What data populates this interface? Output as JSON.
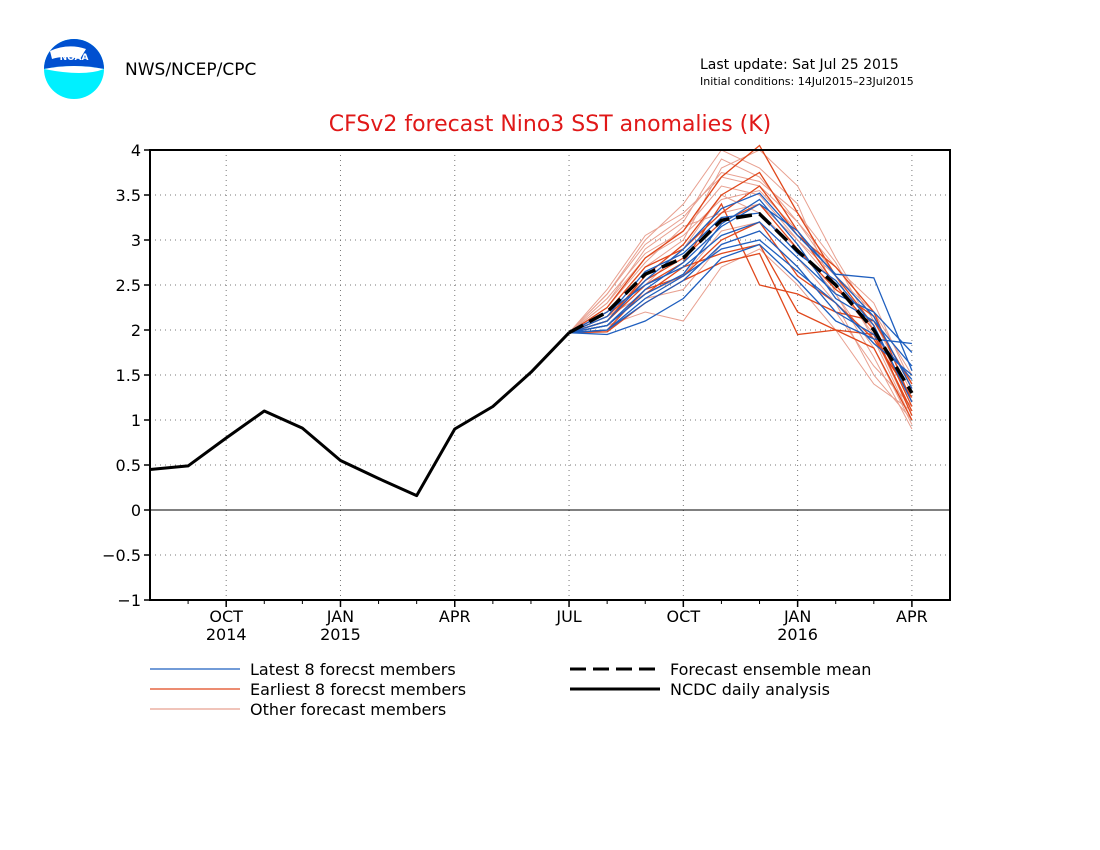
{
  "header": {
    "org": "NWS/NCEP/CPC",
    "last_update": "Last update: Sat Jul 25 2015",
    "initial_conditions": "Initial conditions: 14Jul2015–23Jul2015",
    "logo_text": "NOAA"
  },
  "colors": {
    "title": "#e01818",
    "latest": "#1f5fbf",
    "earliest": "#e0481c",
    "other": "#e8a090",
    "mean": "#000000",
    "analysis": "#000000"
  },
  "chart_data": {
    "type": "line",
    "title": "CFSv2 forecast Nino3 SST anomalies (K)",
    "ylim": [
      -1,
      4
    ],
    "yticks": [
      -1,
      -0.5,
      0,
      0.5,
      1,
      1.5,
      2,
      2.5,
      3,
      3.5,
      4
    ],
    "ytick_labels": [
      "−1",
      "−0.5",
      "0",
      "0.5",
      "1",
      "1.5",
      "2",
      "2.5",
      "3",
      "3.5",
      "4"
    ],
    "xlim": [
      0,
      21
    ],
    "xticks": [
      {
        "x": 2,
        "label": "OCT",
        "year": "2014"
      },
      {
        "x": 5,
        "label": "JAN",
        "year": "2015"
      },
      {
        "x": 8,
        "label": "APR",
        "year": ""
      },
      {
        "x": 11,
        "label": "JUL",
        "year": ""
      },
      {
        "x": 14,
        "label": "OCT",
        "year": ""
      },
      {
        "x": 17,
        "label": "JAN",
        "year": "2016"
      },
      {
        "x": 20,
        "label": "APR",
        "year": ""
      }
    ],
    "analysis": {
      "name": "NCDC daily analysis",
      "x": [
        0,
        1,
        2,
        3,
        4,
        5,
        6,
        7,
        8,
        9,
        10,
        11
      ],
      "values": [
        0.45,
        0.49,
        0.8,
        1.1,
        0.91,
        0.55,
        0.35,
        0.16,
        0.9,
        1.15,
        1.53,
        1.97
      ]
    },
    "mean": {
      "name": "Forecast ensemble mean",
      "x": [
        11,
        12,
        13,
        14,
        15,
        16,
        17,
        18,
        19,
        20
      ],
      "values": [
        1.97,
        2.2,
        2.62,
        2.8,
        3.22,
        3.29,
        2.88,
        2.5,
        2.0,
        1.3
      ]
    },
    "series": [
      {
        "name": "Latest 8 forecst members",
        "group": "latest",
        "x": [
          11,
          12,
          13,
          14,
          15,
          16,
          17,
          18,
          19,
          20
        ],
        "values": [
          1.97,
          2.05,
          2.4,
          2.62,
          3.18,
          3.45,
          2.95,
          2.35,
          2.1,
          1.6
        ]
      },
      {
        "name": "Latest 8 forecst members",
        "group": "latest",
        "x": [
          11,
          12,
          13,
          14,
          15,
          16,
          17,
          18,
          19,
          20
        ],
        "values": [
          1.97,
          2.1,
          2.55,
          2.9,
          3.35,
          3.52,
          3.05,
          2.62,
          2.58,
          1.55
        ]
      },
      {
        "name": "Latest 8 forecst members",
        "group": "latest",
        "x": [
          11,
          12,
          13,
          14,
          15,
          16,
          17,
          18,
          19,
          20
        ],
        "values": [
          1.97,
          2.0,
          2.3,
          2.55,
          2.95,
          3.1,
          2.7,
          2.2,
          1.95,
          1.45
        ]
      },
      {
        "name": "Latest 8 forecst members",
        "group": "latest",
        "x": [
          11,
          12,
          13,
          14,
          15,
          16,
          17,
          18,
          19,
          20
        ],
        "values": [
          1.97,
          2.15,
          2.65,
          2.85,
          3.25,
          3.3,
          2.85,
          2.55,
          2.05,
          1.2
        ]
      },
      {
        "name": "Latest 8 forecst members",
        "group": "latest",
        "x": [
          11,
          12,
          13,
          14,
          15,
          16,
          17,
          18,
          19,
          20
        ],
        "values": [
          1.97,
          1.95,
          2.1,
          2.35,
          2.8,
          2.95,
          2.55,
          2.1,
          1.9,
          1.85
        ]
      },
      {
        "name": "Latest 8 forecst members",
        "group": "latest",
        "x": [
          11,
          12,
          13,
          14,
          15,
          16,
          17,
          18,
          19,
          20
        ],
        "values": [
          1.97,
          2.2,
          2.5,
          2.7,
          3.05,
          3.2,
          2.8,
          2.4,
          2.2,
          1.75
        ]
      },
      {
        "name": "Latest 8 forecst members",
        "group": "latest",
        "x": [
          11,
          12,
          13,
          14,
          15,
          16,
          17,
          18,
          19,
          20
        ],
        "values": [
          1.97,
          2.05,
          2.45,
          2.75,
          3.15,
          3.4,
          3.1,
          2.6,
          2.15,
          1.35
        ]
      },
      {
        "name": "Latest 8 forecst members",
        "group": "latest",
        "x": [
          11,
          12,
          13,
          14,
          15,
          16,
          17,
          18,
          19,
          20
        ],
        "values": [
          1.97,
          2.0,
          2.35,
          2.6,
          2.9,
          3.0,
          2.65,
          2.3,
          1.85,
          1.5
        ]
      },
      {
        "name": "Earliest 8 forecst members",
        "group": "earliest",
        "x": [
          11,
          12,
          13,
          14,
          15,
          16,
          17,
          18,
          19,
          20
        ],
        "values": [
          1.97,
          2.1,
          2.6,
          2.95,
          3.5,
          3.75,
          3.1,
          2.5,
          2.0,
          1.05
        ]
      },
      {
        "name": "Earliest 8 forecst members",
        "group": "earliest",
        "x": [
          11,
          12,
          13,
          14,
          15,
          16,
          17,
          18,
          19,
          20
        ],
        "values": [
          1.97,
          2.05,
          2.4,
          2.7,
          2.85,
          2.95,
          2.2,
          2.0,
          1.8,
          1.0
        ]
      },
      {
        "name": "Earliest 8 forecst members",
        "group": "earliest",
        "x": [
          11,
          12,
          13,
          14,
          15,
          16,
          17,
          18,
          19,
          20
        ],
        "values": [
          1.97,
          2.2,
          2.7,
          2.9,
          3.3,
          3.6,
          3.05,
          2.7,
          2.2,
          1.2
        ]
      },
      {
        "name": "Earliest 8 forecst members",
        "group": "earliest",
        "x": [
          11,
          12,
          13,
          14,
          15,
          16,
          17,
          18,
          19,
          20
        ],
        "values": [
          1.97,
          1.98,
          2.3,
          2.55,
          2.75,
          2.85,
          1.95,
          2.0,
          1.95,
          1.1
        ]
      },
      {
        "name": "Earliest 8 forecst members",
        "group": "earliest",
        "x": [
          11,
          12,
          13,
          14,
          15,
          16,
          17,
          18,
          19,
          20
        ],
        "values": [
          1.97,
          2.25,
          2.8,
          3.1,
          3.7,
          4.05,
          3.3,
          2.6,
          2.05,
          1.15
        ]
      },
      {
        "name": "Earliest 8 forecst members",
        "group": "earliest",
        "x": [
          11,
          12,
          13,
          14,
          15,
          16,
          17,
          18,
          19,
          20
        ],
        "values": [
          1.97,
          2.0,
          2.45,
          2.6,
          3.0,
          3.2,
          2.6,
          2.3,
          1.9,
          1.25
        ]
      },
      {
        "name": "Earliest 8 forecst members",
        "group": "earliest",
        "x": [
          11,
          12,
          13,
          14,
          15,
          16,
          17,
          18,
          19,
          20
        ],
        "values": [
          1.97,
          2.15,
          2.55,
          2.8,
          3.2,
          3.4,
          2.9,
          2.45,
          2.15,
          1.35
        ]
      },
      {
        "name": "Earliest 8 forecst members",
        "group": "earliest",
        "x": [
          11,
          12,
          13,
          14,
          15,
          16,
          17,
          18,
          19,
          20
        ],
        "values": [
          1.97,
          2.1,
          2.5,
          2.75,
          3.4,
          2.5,
          2.4,
          2.2,
          2.1,
          1.4
        ]
      },
      {
        "name": "Other forecast members",
        "group": "other",
        "x": [
          11,
          12,
          13,
          14,
          15,
          16,
          17,
          18,
          19,
          20
        ],
        "values": [
          1.97,
          2.3,
          2.9,
          3.2,
          3.9,
          3.7,
          3.2,
          2.6,
          1.9,
          1.0
        ]
      },
      {
        "name": "Other forecast members",
        "group": "other",
        "x": [
          11,
          12,
          13,
          14,
          15,
          16,
          17,
          18,
          19,
          20
        ],
        "values": [
          1.97,
          2.4,
          3.0,
          3.4,
          4.0,
          3.8,
          3.4,
          2.4,
          1.7,
          0.9
        ]
      },
      {
        "name": "Other forecast members",
        "group": "other",
        "x": [
          11,
          12,
          13,
          14,
          15,
          16,
          17,
          18,
          19,
          20
        ],
        "values": [
          1.97,
          2.05,
          2.2,
          2.1,
          2.7,
          2.9,
          2.5,
          2.0,
          1.4,
          1.1
        ]
      },
      {
        "name": "Other forecast members",
        "group": "other",
        "x": [
          11,
          12,
          13,
          14,
          15,
          16,
          17,
          18,
          19,
          20
        ],
        "values": [
          1.97,
          2.35,
          2.85,
          3.1,
          3.6,
          3.5,
          3.0,
          2.5,
          2.0,
          1.2
        ]
      },
      {
        "name": "Other forecast members",
        "group": "other",
        "x": [
          11,
          12,
          13,
          14,
          15,
          16,
          17,
          18,
          19,
          20
        ],
        "values": [
          1.97,
          2.2,
          2.7,
          3.0,
          3.8,
          4.0,
          3.6,
          2.8,
          2.1,
          1.3
        ]
      },
      {
        "name": "Other forecast members",
        "group": "other",
        "x": [
          11,
          12,
          13,
          14,
          15,
          16,
          17,
          18,
          19,
          20
        ],
        "values": [
          1.97,
          2.15,
          2.4,
          2.6,
          3.1,
          3.2,
          2.8,
          2.3,
          1.5,
          1.0
        ]
      },
      {
        "name": "Other forecast members",
        "group": "other",
        "x": [
          11,
          12,
          13,
          14,
          15,
          16,
          17,
          18,
          19,
          20
        ],
        "values": [
          1.97,
          2.45,
          3.05,
          3.3,
          3.7,
          3.6,
          3.2,
          2.7,
          2.3,
          1.4
        ]
      },
      {
        "name": "Other forecast members",
        "group": "other",
        "x": [
          11,
          12,
          13,
          14,
          15,
          16,
          17,
          18,
          19,
          20
        ],
        "values": [
          1.97,
          2.1,
          2.5,
          2.9,
          3.5,
          3.3,
          2.9,
          2.4,
          1.8,
          0.95
        ]
      },
      {
        "name": "Other forecast members",
        "group": "other",
        "x": [
          11,
          12,
          13,
          14,
          15,
          16,
          17,
          18,
          19,
          20
        ],
        "values": [
          1.97,
          2.25,
          2.75,
          3.15,
          3.3,
          3.4,
          3.0,
          2.6,
          2.2,
          1.5
        ]
      },
      {
        "name": "Other forecast members",
        "group": "other",
        "x": [
          11,
          12,
          13,
          14,
          15,
          16,
          17,
          18,
          19,
          20
        ],
        "values": [
          1.97,
          2.3,
          2.8,
          3.05,
          3.45,
          3.55,
          3.1,
          2.5,
          1.95,
          1.05
        ]
      },
      {
        "name": "Other forecast members",
        "group": "other",
        "x": [
          11,
          12,
          13,
          14,
          15,
          16,
          17,
          18,
          19,
          20
        ],
        "values": [
          1.97,
          2.0,
          2.35,
          2.45,
          2.95,
          3.1,
          2.7,
          2.2,
          1.6,
          1.15
        ]
      },
      {
        "name": "Other forecast members",
        "group": "other",
        "x": [
          11,
          12,
          13,
          14,
          15,
          16,
          17,
          18,
          19,
          20
        ],
        "values": [
          1.97,
          2.4,
          2.95,
          3.25,
          3.75,
          3.65,
          3.3,
          2.75,
          2.0,
          1.2
        ]
      }
    ],
    "legend": [
      {
        "label": "Latest 8 forecst members",
        "style": "latest"
      },
      {
        "label": "Earliest 8 forecst members",
        "style": "earliest"
      },
      {
        "label": "Other forecast members",
        "style": "other"
      },
      {
        "label": "Forecast ensemble mean",
        "style": "mean"
      },
      {
        "label": "NCDC daily analysis",
        "style": "analysis"
      }
    ],
    "grid": true
  }
}
